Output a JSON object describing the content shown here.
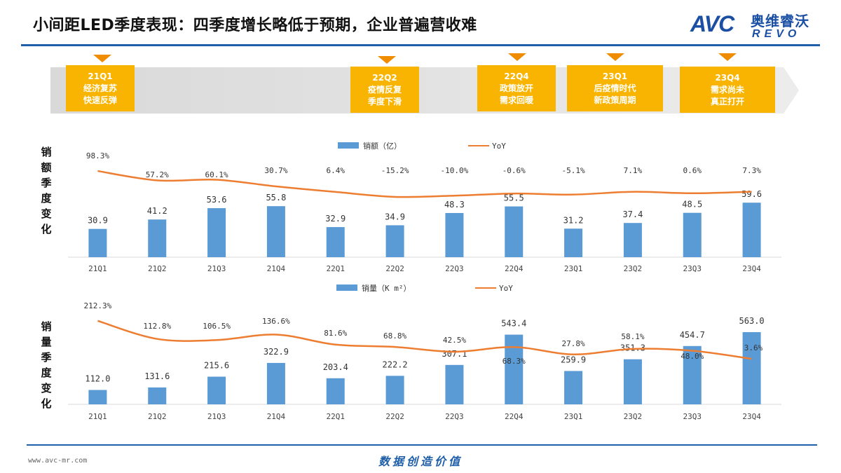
{
  "header": {
    "title": "小间距LED季度表现：四季度增长略低于预期，企业普遍营收难",
    "logo_avc": "AVC",
    "logo_cn": "奥维睿沃",
    "logo_en": "REVO"
  },
  "timeline": {
    "events": [
      {
        "quarter": "21Q1",
        "line1": "经济复苏",
        "line2": "快速反弹"
      },
      {
        "quarter": "22Q2",
        "line1": "疫情反复",
        "line2": "季度下滑"
      },
      {
        "quarter": "22Q4",
        "line1": "政策放开",
        "line2": "需求回暖"
      },
      {
        "quarter": "23Q1",
        "line1": "后疫情时代",
        "line2": "新政策周期"
      },
      {
        "quarter": "23Q4",
        "line1": "需求尚未",
        "line2": "真正打开"
      }
    ]
  },
  "side_labels": {
    "sales_value": "销额季度变化",
    "sales_volume": "销量季度变化"
  },
  "colors": {
    "bar": "#5b9bd5",
    "line": "#ed7d31",
    "event": "#f8b400",
    "event_arrow": "#f08c00",
    "rule": "#1f5ea8"
  },
  "chart_data": [
    {
      "type": "bar",
      "legend_position": "top",
      "categories": [
        "21Q1",
        "21Q2",
        "21Q3",
        "21Q4",
        "22Q1",
        "22Q2",
        "22Q3",
        "22Q4",
        "23Q1",
        "23Q2",
        "23Q3",
        "23Q4"
      ],
      "series": [
        {
          "name": "销额（亿）",
          "type": "bar",
          "values": [
            30.9,
            41.2,
            53.6,
            55.8,
            32.9,
            34.9,
            48.3,
            55.5,
            31.2,
            37.4,
            48.5,
            59.6
          ],
          "labels": [
            "30.9",
            "41.2",
            "53.6",
            "55.8",
            "32.9",
            "34.9",
            "48.3",
            "55.5",
            "31.2",
            "37.4",
            "48.5",
            "59.6"
          ]
        },
        {
          "name": "YoY",
          "type": "line",
          "values": [
            98.3,
            57.2,
            60.1,
            30.7,
            6.4,
            -15.2,
            -10.0,
            -0.6,
            -5.1,
            7.1,
            0.6,
            7.3
          ],
          "labels": [
            "98.3%",
            "57.2%",
            "60.1%",
            "30.7%",
            "6.4%",
            "-15.2%",
            "-10.0%",
            "-0.6%",
            "-5.1%",
            "7.1%",
            "0.6%",
            "7.3%"
          ]
        }
      ]
    },
    {
      "type": "bar",
      "legend_position": "top",
      "categories": [
        "21Q1",
        "21Q2",
        "21Q3",
        "21Q4",
        "22Q1",
        "22Q2",
        "22Q3",
        "22Q4",
        "23Q1",
        "23Q2",
        "23Q3",
        "23Q4"
      ],
      "series": [
        {
          "name": "销量（K m²）",
          "type": "bar",
          "values": [
            112.0,
            131.6,
            215.6,
            322.9,
            203.4,
            222.2,
            307.1,
            543.4,
            259.9,
            351.3,
            454.7,
            563.0
          ],
          "labels": [
            "112.0",
            "131.6",
            "215.6",
            "322.9",
            "203.4",
            "222.2",
            "307.1",
            "543.4",
            "259.9",
            "351.3",
            "454.7",
            "563.0"
          ]
        },
        {
          "name": "YoY",
          "type": "line",
          "values": [
            212.3,
            112.8,
            106.5,
            136.6,
            81.6,
            68.8,
            42.5,
            68.3,
            27.8,
            58.1,
            48.0,
            3.6
          ],
          "labels": [
            "212.3%",
            "112.8%",
            "106.5%",
            "136.6%",
            "81.6%",
            "68.8%",
            "42.5%",
            "68.3%",
            "27.8%",
            "58.1%",
            "48.0%",
            "3.6%"
          ]
        }
      ]
    }
  ],
  "footer": {
    "url": "www.avc-mr.com",
    "slogan": "数据创造价值"
  }
}
